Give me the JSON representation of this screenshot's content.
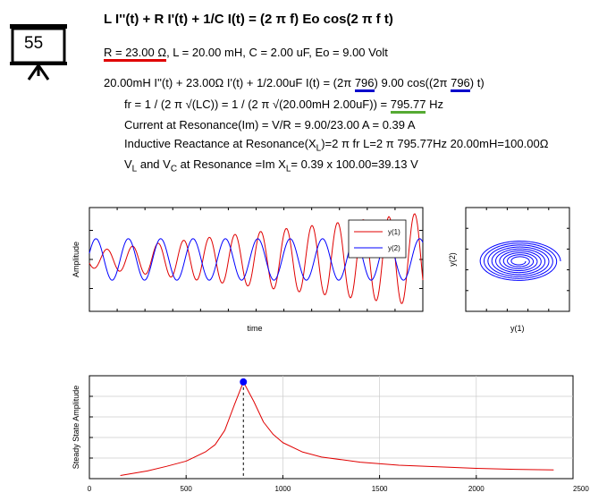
{
  "badge": {
    "number": "55",
    "icon": "presentation-board-icon"
  },
  "header": {
    "equation": "L I''(t) + R I'(t) + 1/C I(t) = (2 π f) Eo cos(2 π f t)",
    "params_r": "R = 23.00 Ω",
    "params_rest": ", L = 20.00 mH, C = 2.00 uF, Eo = 9.00 Volt"
  },
  "ode": {
    "prefix": "20.00mH I''(t) + 23.00Ω I'(t) + 1/2.00uF I(t) = (2π ",
    "f1": "796",
    "mid": ") 9.00 cos((2π ",
    "f2": "796",
    "suffix": ") t)"
  },
  "resonance": {
    "fr_prefix": "fr = 1 / (2 π √(LC)) = 1 / (2 π √(20.00mH 2.00uF)) = ",
    "fr_value": "795.77",
    "fr_unit": " Hz",
    "current": "Current at Resonance(Im) = V/R = 9.00/23.00 A = 0.39 A",
    "react_a": "Inductive Reactance at Resonance(X",
    "react_sub": "L",
    "react_b": ")=2 π fr L=2 π 795.77Hz 20.00mH=100.00Ω",
    "v_a": "V",
    "v_sub1": "L",
    "v_b": " and V",
    "v_sub2": "C",
    "v_c": " at Resonance =Im X",
    "v_sub3": "L",
    "v_d": "= 0.39 x 100.00=39.13 V"
  },
  "colors": {
    "series1": "#e00000",
    "series2": "#0000ff",
    "green": "#55aa33"
  },
  "chart_data": [
    {
      "type": "line",
      "xlabel": "time",
      "ylabel": "Amplitude",
      "series": [
        {
          "name": "y(1)",
          "color": "#e00000",
          "description": "growing sinusoid, ~13 cycles"
        },
        {
          "name": "y(2)",
          "color": "#0000ff",
          "description": "sinusoid of near-constant amplitude, ~10 cycles"
        }
      ],
      "legend_position": "top-right"
    },
    {
      "type": "line",
      "xlabel": "y(1)",
      "ylabel": "y(2)",
      "series": [
        {
          "name": "phase portrait",
          "color": "#0000ff",
          "description": "inward spiral"
        }
      ]
    },
    {
      "type": "line",
      "xlabel": "",
      "ylabel": "Steady State Amplitude",
      "xticks": [
        "0",
        "500",
        "1000",
        "1500",
        "2000",
        "2500"
      ],
      "xlim": [
        0,
        2500
      ],
      "ylim": [
        0,
        1
      ],
      "grid": true,
      "series": [
        {
          "name": "",
          "color": "#e00000",
          "x": [
            160,
            300,
            400,
            500,
            600,
            650,
            700,
            750,
            796,
            850,
            900,
            950,
            1000,
            1100,
            1200,
            1400,
            1600,
            1800,
            2000,
            2200,
            2400
          ],
          "y": [
            0.03,
            0.075,
            0.12,
            0.17,
            0.26,
            0.33,
            0.47,
            0.72,
            0.94,
            0.75,
            0.55,
            0.43,
            0.35,
            0.26,
            0.21,
            0.16,
            0.13,
            0.115,
            0.1,
            0.09,
            0.085
          ]
        }
      ],
      "peak": {
        "x": 796,
        "y": 0.94
      }
    }
  ]
}
